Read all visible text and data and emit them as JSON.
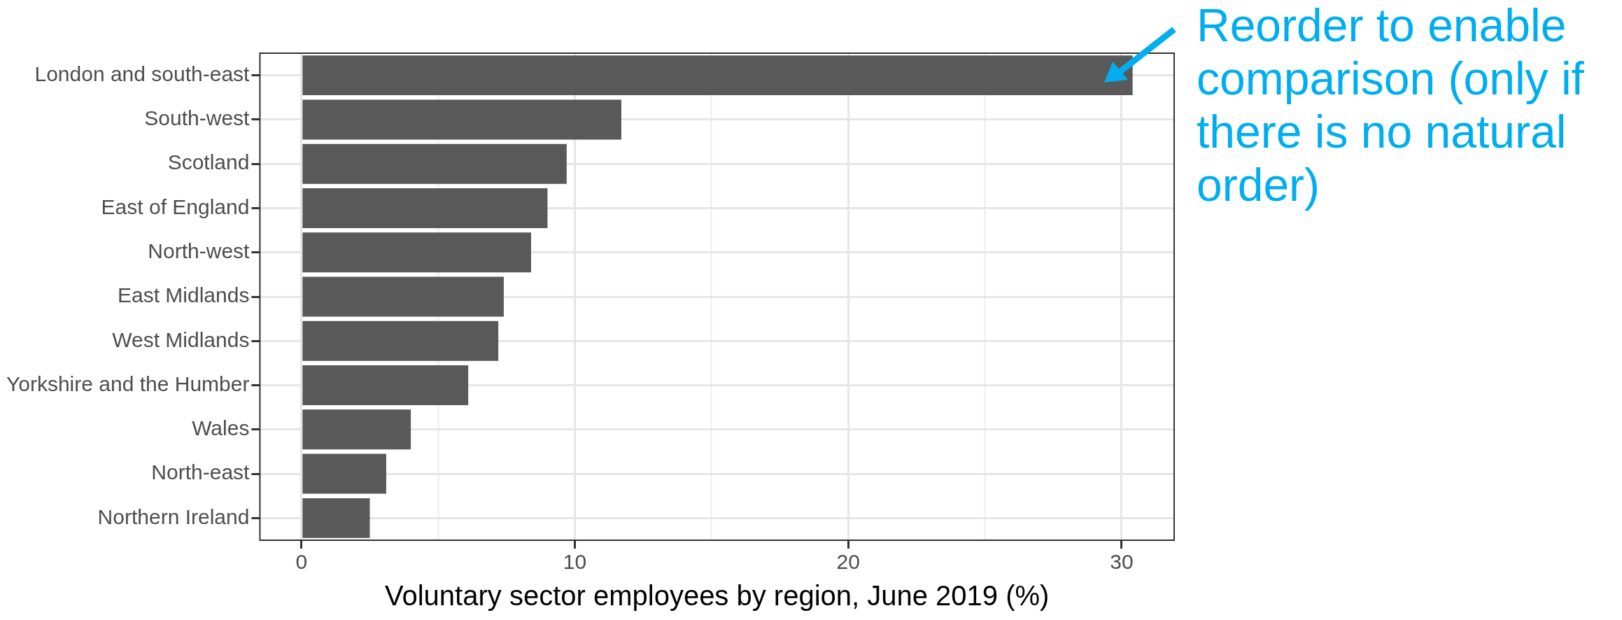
{
  "chart_data": {
    "type": "bar",
    "orientation": "horizontal",
    "xlabel": "Voluntary sector employees by region, June 2019 (%)",
    "categories": [
      "London and south-east",
      "South-west",
      "Scotland",
      "East of England",
      "North-west",
      "East Midlands",
      "West Midlands",
      "Yorkshire and the Humber",
      "Wales",
      "North-east",
      "Northern Ireland"
    ],
    "values": [
      30.4,
      11.7,
      9.7,
      9.0,
      8.4,
      7.4,
      7.2,
      6.1,
      4.0,
      3.1,
      2.5
    ],
    "color": "#595959",
    "xlim": [
      -1.52,
      31.92
    ],
    "xticks": [
      0,
      {
        "value": 5,
        "label": null
      },
      10,
      {
        "value": 15,
        "label": null
      },
      20,
      {
        "value": 25,
        "label": null
      },
      30
    ],
    "grid": true,
    "legend": false,
    "annotations": [
      "Reorder to enable comparison (only if there is no natural order)"
    ]
  }
}
